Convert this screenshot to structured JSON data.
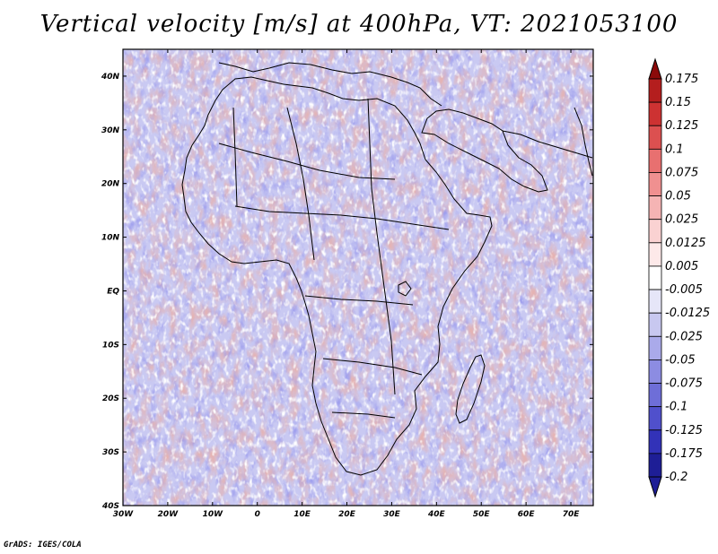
{
  "title": "Vertical velocity [m/s] at 400hPa, VT: 2021053100",
  "footer": "GrADS: IGES/COLA",
  "map": {
    "lon_range": [
      -30,
      75
    ],
    "lat_range": [
      -40,
      45
    ],
    "lon_ticks": [
      "30W",
      "20W",
      "10W",
      "0",
      "10E",
      "20E",
      "30E",
      "40E",
      "50E",
      "60E",
      "70E"
    ],
    "lat_ticks": [
      "40N",
      "30N",
      "20N",
      "10N",
      "EQ",
      "10S",
      "20S",
      "30S",
      "40S"
    ],
    "field_colors": {
      "background": "#c9c9f2",
      "positive_strong": "#c83232",
      "positive_light": "#f2a6a6",
      "negative_strong": "#3c3cd2",
      "negative_light": "#a0a0ea"
    }
  },
  "colorbar": {
    "levels": [
      {
        "label": "0.175",
        "color": "#8c0a0a"
      },
      {
        "label": "0.15",
        "color": "#b41e1e"
      },
      {
        "label": "0.125",
        "color": "#cd3232"
      },
      {
        "label": "0.1",
        "color": "#dc5050"
      },
      {
        "label": "0.075",
        "color": "#e87070"
      },
      {
        "label": "0.05",
        "color": "#f09090"
      },
      {
        "label": "0.025",
        "color": "#f5b4b4"
      },
      {
        "label": "0.0125",
        "color": "#fad2d2"
      },
      {
        "label": "0.005",
        "color": "#fde9e9"
      },
      {
        "label": "-0.005",
        "color": "#ffffff"
      },
      {
        "label": "-0.0125",
        "color": "#e6e6f8"
      },
      {
        "label": "-0.025",
        "color": "#c8c8f0"
      },
      {
        "label": "-0.05",
        "color": "#aaaaea"
      },
      {
        "label": "-0.075",
        "color": "#8c8ce2"
      },
      {
        "label": "-0.1",
        "color": "#6e6ed8"
      },
      {
        "label": "-0.125",
        "color": "#5050cc"
      },
      {
        "label": "-0.175",
        "color": "#3232b8"
      },
      {
        "label": "-0.2",
        "color": "#1e1e96"
      }
    ],
    "top_color": "#8c0a0a",
    "bottom_color": "#1e1e96"
  }
}
